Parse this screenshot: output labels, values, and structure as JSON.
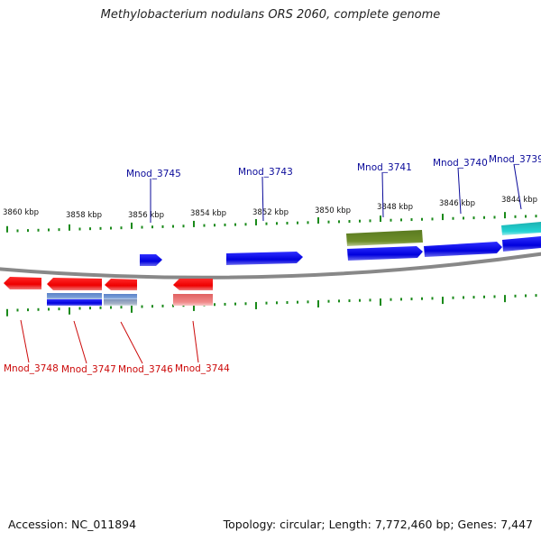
{
  "title": "Methylobacterium nodulans ORS 2060, complete genome",
  "accession": "Accession: NC_011894",
  "summary": "Topology: circular; Length: 7,772,460 bp; Genes: 7,447",
  "colors": {
    "forward_gene": "#1010e0",
    "reverse_gene": "#ee1111",
    "forward_label": "#0a0a9a",
    "reverse_label": "#cc0a0a",
    "tick": "#1a8a1a",
    "backbone": "#888888"
  },
  "kbp_labels": [
    "3860 kbp",
    "3858 kbp",
    "3856 kbp",
    "3854 kbp",
    "3852 kbp",
    "3850 kbp",
    "3848 kbp",
    "3846 kbp",
    "3844 kbp"
  ],
  "forward_labels": [
    "Mnod_3745",
    "Mnod_3743",
    "Mnod_3741",
    "Mnod_3740",
    "Mnod_3739"
  ],
  "reverse_labels": [
    "Mnod_3748",
    "Mnod_3747",
    "Mnod_3746",
    "Mnod_3744"
  ]
}
